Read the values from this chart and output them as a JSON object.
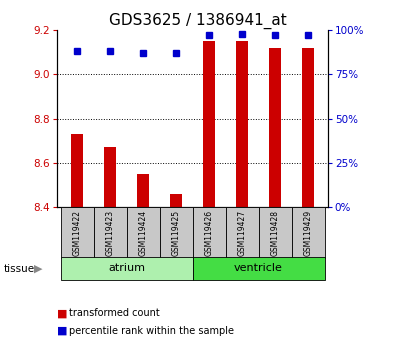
{
  "title": "GDS3625 / 1386941_at",
  "samples": [
    "GSM119422",
    "GSM119423",
    "GSM119424",
    "GSM119425",
    "GSM119426",
    "GSM119427",
    "GSM119428",
    "GSM119429"
  ],
  "red_values": [
    8.73,
    8.67,
    8.55,
    8.46,
    9.15,
    9.15,
    9.12,
    9.12
  ],
  "blue_values_pct": [
    88,
    88,
    87,
    87,
    97,
    98,
    97,
    97
  ],
  "ymin": 8.4,
  "ymax": 9.2,
  "y_ticks_left": [
    8.4,
    8.6,
    8.8,
    9.0,
    9.2
  ],
  "y_ticks_right_vals": [
    0,
    25,
    50,
    75,
    100
  ],
  "y_ticks_right_labels": [
    "0%",
    "25%",
    "50%",
    "75%",
    "100%"
  ],
  "groups": [
    {
      "label": "atrium",
      "samples": [
        0,
        1,
        2,
        3
      ],
      "color": "#aef0ae"
    },
    {
      "label": "ventricle",
      "samples": [
        4,
        5,
        6,
        7
      ],
      "color": "#44dd44"
    }
  ],
  "bar_color": "#cc0000",
  "dot_color": "#0000cc",
  "bg_color": "#c8c8c8",
  "tick_color_left": "#cc0000",
  "tick_color_right": "#0000cc",
  "legend_items": [
    {
      "label": "transformed count",
      "color": "#cc0000"
    },
    {
      "label": "percentile rank within the sample",
      "color": "#0000cc"
    }
  ],
  "title_fontsize": 11,
  "bar_width": 0.35
}
